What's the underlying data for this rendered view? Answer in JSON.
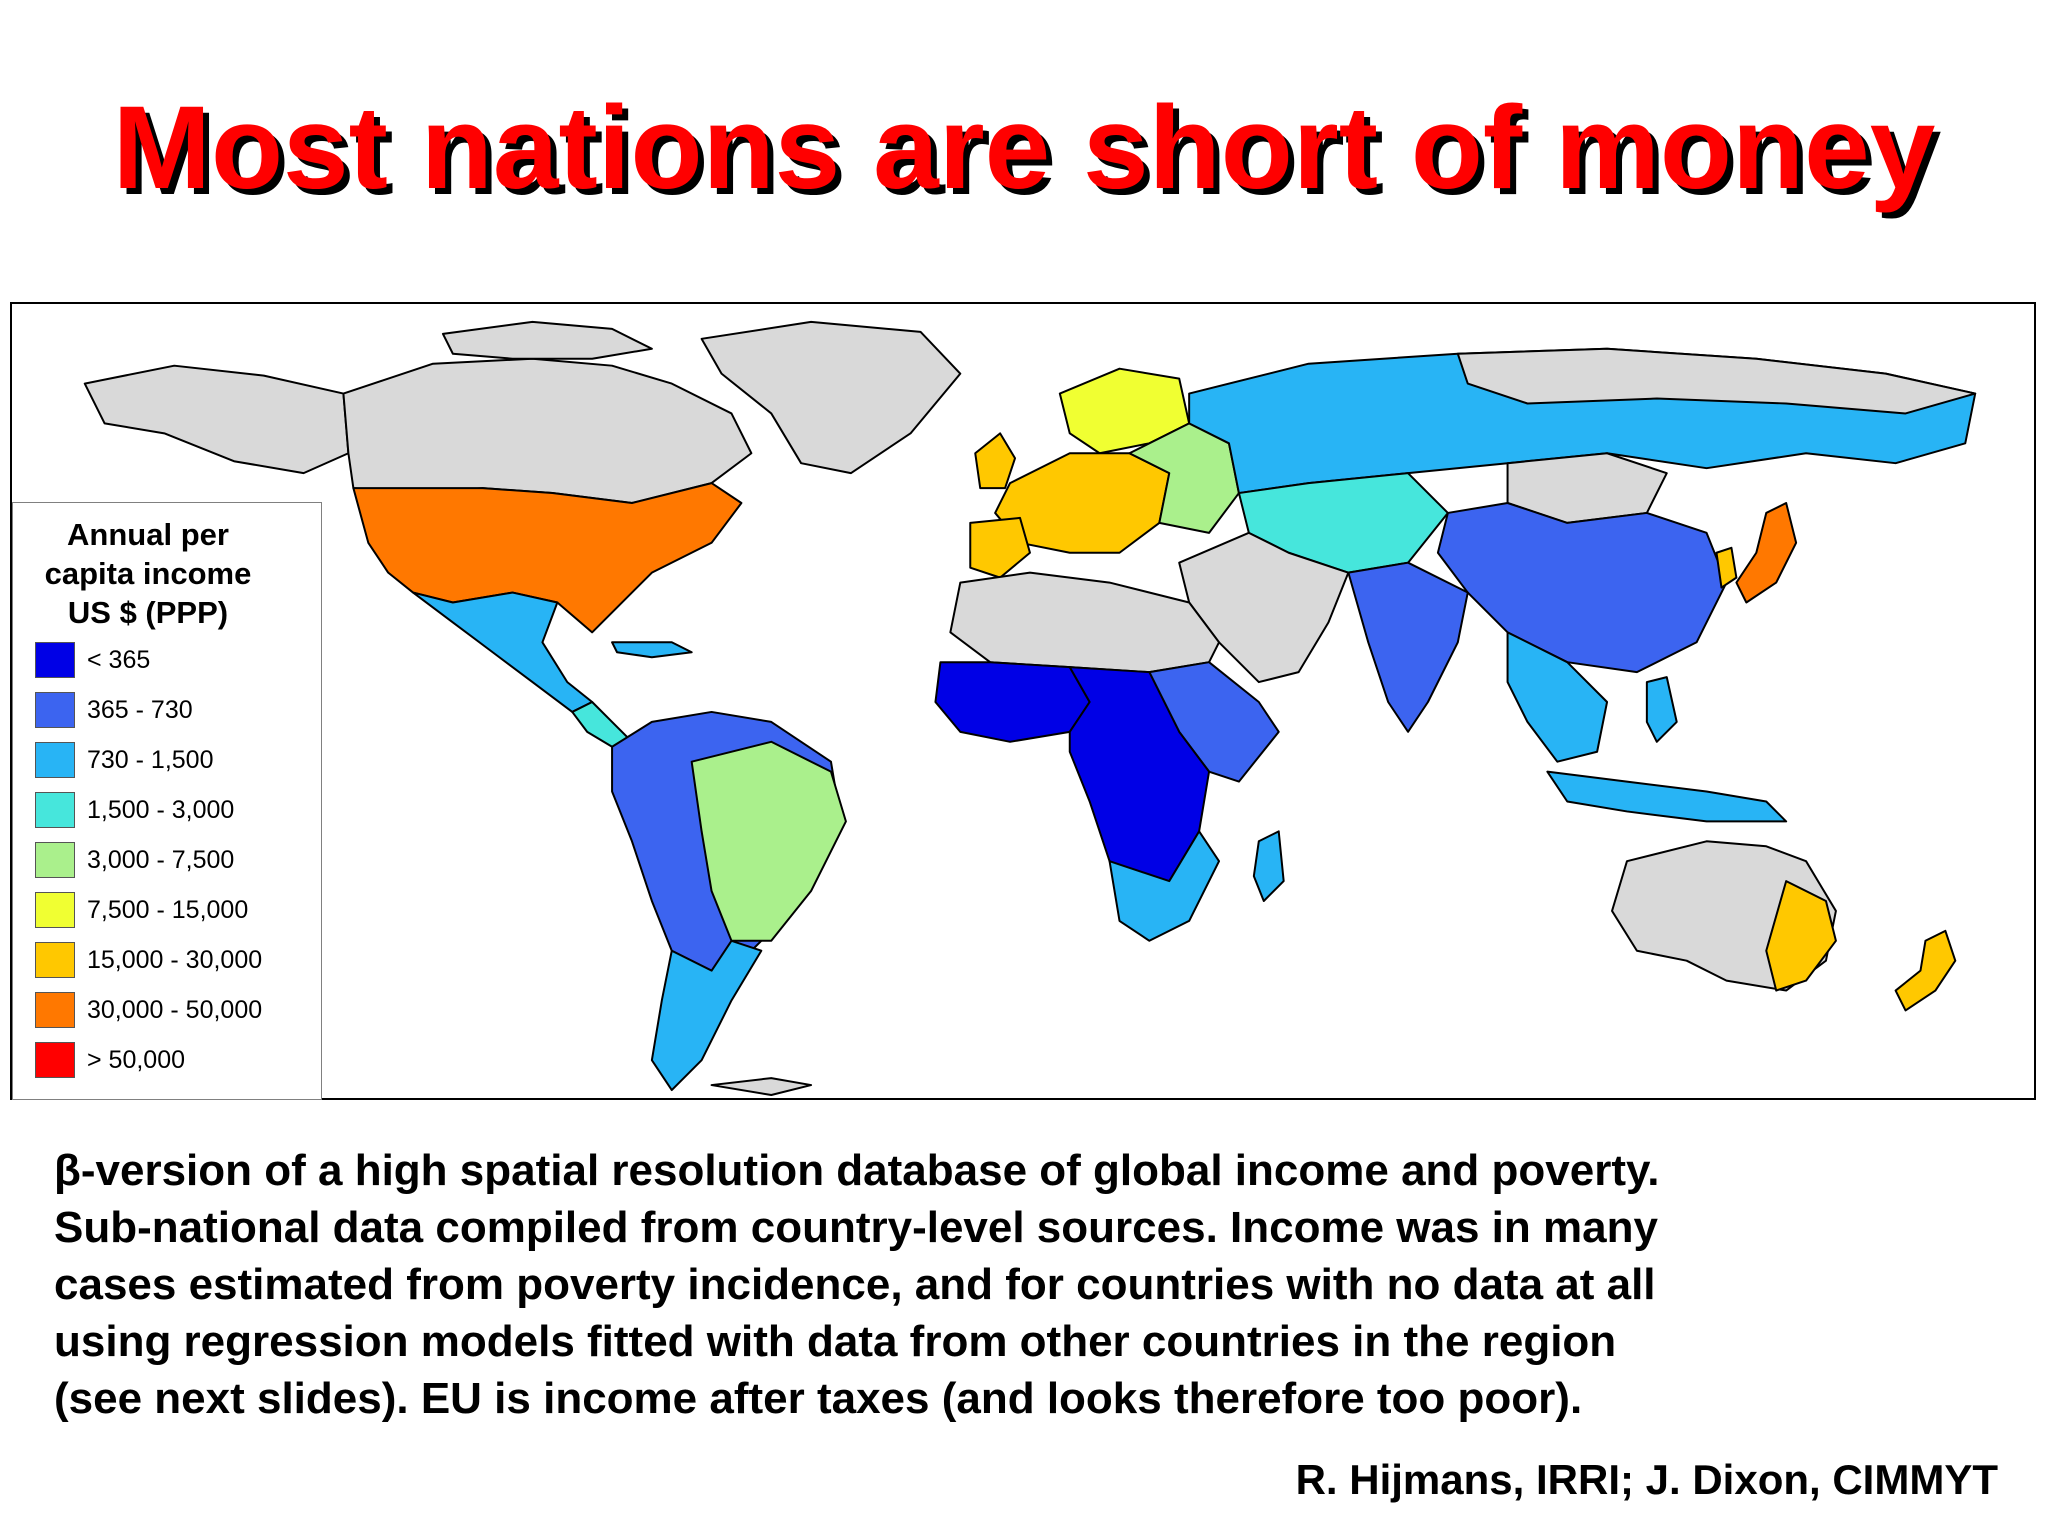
{
  "slide": {
    "title": "Most nations are short of money"
  },
  "legend": {
    "title": "Annual per\ncapita income\nUS $ (PPP)",
    "items": [
      {
        "label": "< 365",
        "color": "#0000e6"
      },
      {
        "label": "365 - 730",
        "color": "#3c64f0"
      },
      {
        "label": "730 - 1,500",
        "color": "#28b4f5"
      },
      {
        "label": "1,500 - 3,000",
        "color": "#46e6dc"
      },
      {
        "label": "3,000 - 7,500",
        "color": "#aaf08c"
      },
      {
        "label": "7,500 - 15,000",
        "color": "#f0ff32"
      },
      {
        "label": "15,000 - 30,000",
        "color": "#ffc800"
      },
      {
        "label": "30,000 - 50,000",
        "color": "#ff7800"
      },
      {
        "label": "> 50,000",
        "color": "#ff0000"
      }
    ]
  },
  "map": {
    "ocean_color": "#ffffff",
    "no_data_color": "#d9d9d9",
    "border_color": "#000000"
  },
  "caption": {
    "lines": [
      "β-version of a high spatial resolution database of global income and poverty.",
      "Sub-national data compiled from country-level sources. Income was in many",
      "cases estimated from poverty incidence, and for countries with no data at all",
      "using regression models fitted with data from other countries in the region",
      "(see next slides). EU is income after taxes (and looks therefore too poor)."
    ]
  },
  "credit": {
    "text": "R. Hijmans, IRRI; J. Dixon, CIMMYT"
  }
}
